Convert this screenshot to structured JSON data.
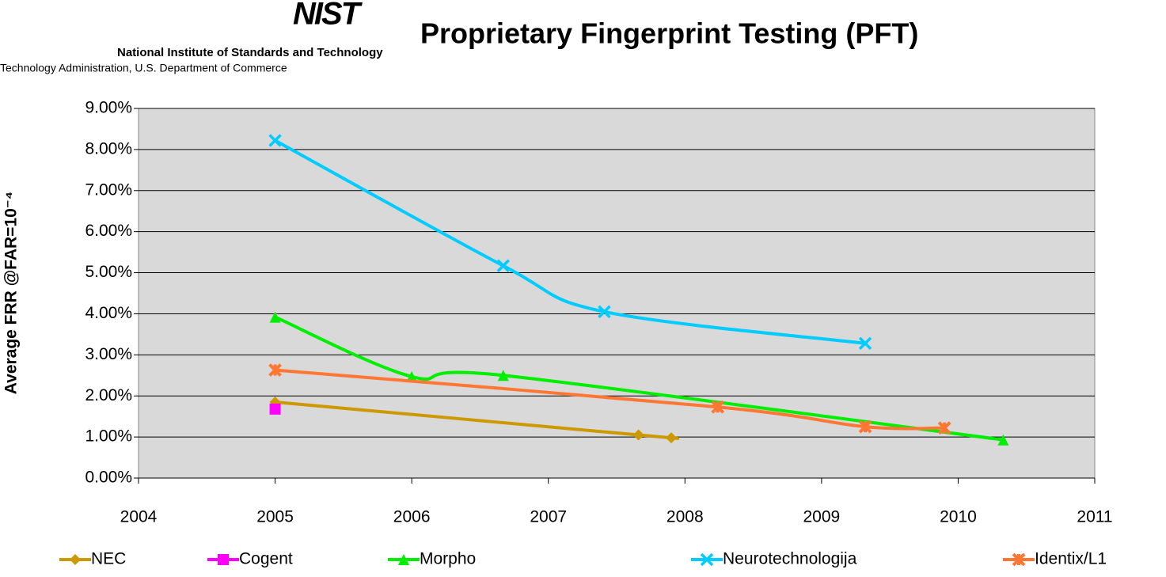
{
  "header": {
    "logo": "NIST",
    "org": "National Institute of Standards and Technology",
    "dept": "Technology Administration, U.S. Department of Commerce"
  },
  "chart_data": {
    "type": "line",
    "title": "Proprietary Fingerprint Testing (PFT)",
    "y_label": "Average FRR @FAR=10⁻⁴",
    "xlim": [
      2004,
      2011
    ],
    "xticks": [
      2004,
      2005,
      2006,
      2007,
      2008,
      2009,
      2010,
      2011
    ],
    "ylim": [
      0,
      9
    ],
    "yticks": [
      {
        "value": 0,
        "label": "0.00%"
      },
      {
        "value": 1,
        "label": "1.00%"
      },
      {
        "value": 2,
        "label": "2.00%"
      },
      {
        "value": 3,
        "label": "3.00%"
      },
      {
        "value": 4,
        "label": "4.00%"
      },
      {
        "value": 5,
        "label": "5.00%"
      },
      {
        "value": 6,
        "label": "6.00%"
      },
      {
        "value": 7,
        "label": "7.00%"
      },
      {
        "value": 8,
        "label": "8.00%"
      },
      {
        "value": 9,
        "label": "9.00%"
      }
    ],
    "grid": true,
    "legend": "bottom",
    "series": [
      {
        "name": "NEC",
        "color": "#cc9900",
        "marker": "diamond",
        "x": [
          2005,
          2007.66,
          2007.9
        ],
        "values": [
          1.85,
          1.05,
          0.98
        ]
      },
      {
        "name": "Cogent",
        "color": "#ff00ff",
        "marker": "square",
        "x": [
          2005
        ],
        "values": [
          1.68
        ]
      },
      {
        "name": "Morpho",
        "color": "#00ee00",
        "marker": "triangle",
        "x": [
          2005,
          2006,
          2006.67,
          2010.33
        ],
        "values": [
          3.92,
          2.47,
          2.5,
          0.93
        ]
      },
      {
        "name": "Neurotechnologija",
        "color": "#00ccff",
        "marker": "x",
        "x": [
          2005,
          2006.67,
          2007.41,
          2009.32
        ],
        "values": [
          8.22,
          5.17,
          4.05,
          3.28
        ]
      },
      {
        "name": "Identix/L1",
        "color": "#ff7733",
        "marker": "star",
        "x": [
          2005,
          2008.24,
          2009.32,
          2009.9
        ],
        "values": [
          2.63,
          1.73,
          1.25,
          1.22
        ]
      }
    ]
  }
}
